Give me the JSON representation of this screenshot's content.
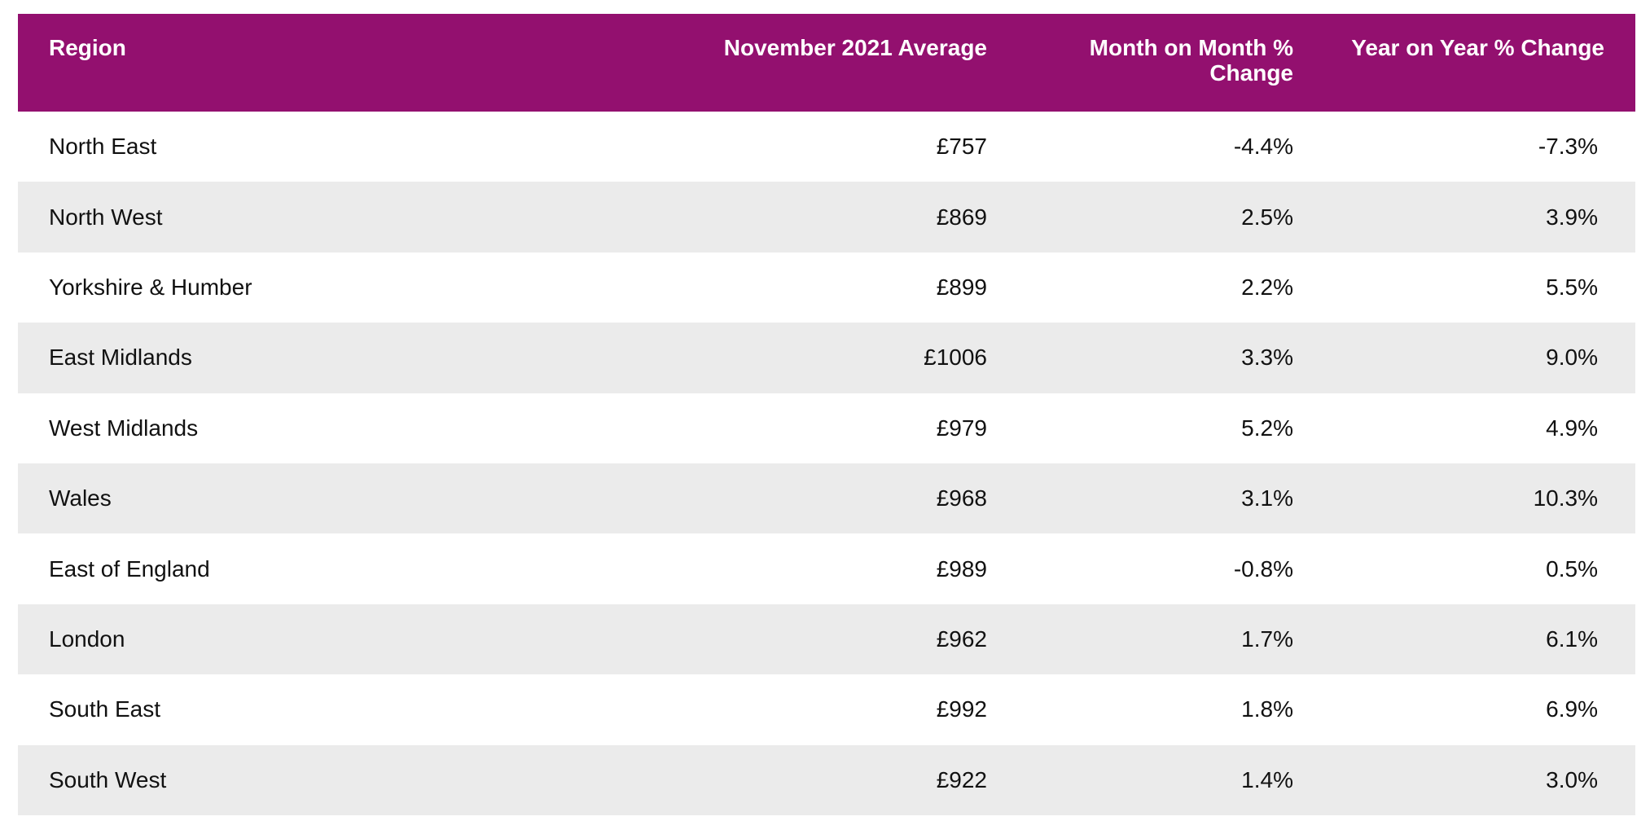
{
  "table": {
    "headers": {
      "region": "Region",
      "average": "November 2021 Average",
      "mom_line1": "Month on Month %",
      "mom_line2": "Change",
      "yoy": "Year on Year % Change"
    },
    "rows": [
      {
        "region": "North East",
        "average": "£757",
        "mom": "-4.4%",
        "yoy": "-7.3%"
      },
      {
        "region": "North West",
        "average": "£869",
        "mom": "2.5%",
        "yoy": "3.9%"
      },
      {
        "region": "Yorkshire & Humber",
        "average": "£899",
        "mom": "2.2%",
        "yoy": "5.5%"
      },
      {
        "region": "East Midlands",
        "average": "£1006",
        "mom": "3.3%",
        "yoy": "9.0%"
      },
      {
        "region": "West Midlands",
        "average": "£979",
        "mom": "5.2%",
        "yoy": "4.9%"
      },
      {
        "region": "Wales",
        "average": "£968",
        "mom": "3.1%",
        "yoy": "10.3%"
      },
      {
        "region": "East of England",
        "average": "£989",
        "mom": "-0.8%",
        "yoy": "0.5%"
      },
      {
        "region": "London",
        "average": "£962",
        "mom": "1.7%",
        "yoy": "6.1%"
      },
      {
        "region": "South East",
        "average": "£992",
        "mom": "1.8%",
        "yoy": "6.9%"
      },
      {
        "region": "South West",
        "average": "£922",
        "mom": "1.4%",
        "yoy": "3.0%"
      }
    ]
  },
  "colors": {
    "header_bg": "#93106f",
    "header_text": "#ffffff",
    "stripe_bg": "#ebebeb"
  }
}
